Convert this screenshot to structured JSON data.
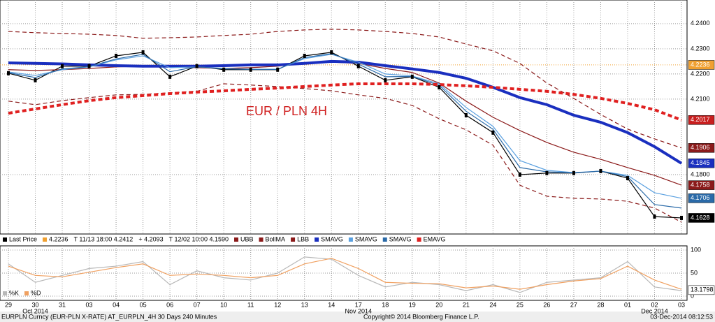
{
  "chart_data": [
    {
      "type": "line",
      "title": "EUR / PLN 4H",
      "categories": [
        "29",
        "30",
        "31",
        "03",
        "04",
        "05",
        "06",
        "07",
        "10",
        "11",
        "12",
        "13",
        "14",
        "17",
        "18",
        "19",
        "20",
        "21",
        "24",
        "25",
        "26",
        "27",
        "28",
        "01",
        "02",
        "03"
      ],
      "months": [
        {
          "index": 1,
          "label": "Oct 2014"
        },
        {
          "index": 13,
          "label": "Nov 2014"
        },
        {
          "index": 24,
          "label": "Dec 2014"
        }
      ],
      "ylim": [
        4.1564,
        4.2494
      ],
      "yticks": [
        {
          "value": 4.24,
          "label": "4.2400"
        },
        {
          "value": 4.23,
          "label": "4.2300"
        },
        {
          "value": 4.22,
          "label": "4.2200"
        },
        {
          "value": 4.21,
          "label": "4.2100"
        },
        {
          "value": 4.18,
          "label": "4.1800"
        }
      ],
      "grid": true,
      "last_price_line": {
        "value": 4.2236,
        "label": "4.2236",
        "color": "#f0a030"
      },
      "legend_notes": [
        "T 11/13 18:00 4.2412",
        "+ 4.2093",
        "T 12/02 10:00 4.1590"
      ],
      "series": [
        {
          "name": "Last Price",
          "color": "#000000",
          "values": [
            4.2203,
            4.2175,
            4.2231,
            4.2231,
            4.2272,
            4.2286,
            4.2189,
            4.2231,
            4.2217,
            4.2217,
            4.2217,
            4.2272,
            4.2286,
            4.2231,
            4.2175,
            4.2189,
            4.2147,
            4.2036,
            4.1967,
            4.18,
            4.1806,
            4.1806,
            4.1814,
            4.1786,
            4.1633,
            4.1628
          ]
        },
        {
          "name": "UBB",
          "color": "#8b1a1a",
          "style": "dashed",
          "values": [
            4.2369,
            4.2364,
            4.2361,
            4.2358,
            4.2353,
            4.2342,
            4.2344,
            4.2347,
            4.2353,
            4.2358,
            4.2369,
            4.2375,
            4.2378,
            4.2375,
            4.2369,
            4.2361,
            4.2347,
            4.2319,
            4.2292,
            4.2242,
            4.2164,
            4.2103,
            4.2039,
            4.1981,
            4.1942,
            4.1906
          ]
        },
        {
          "name": "BollMA",
          "color": "#8b1a1a",
          "values": [
            4.2217,
            4.2214,
            4.2217,
            4.2222,
            4.2228,
            4.2231,
            4.2228,
            4.2225,
            4.2222,
            4.2225,
            4.2231,
            4.2244,
            4.2247,
            4.2242,
            4.2222,
            4.2206,
            4.2164,
            4.2092,
            4.2028,
            4.1975,
            4.1928,
            4.1889,
            4.1861,
            4.1828,
            4.1797,
            4.1758
          ]
        },
        {
          "name": "LBB",
          "color": "#8b1a1a",
          "style": "dashed",
          "values": [
            4.2092,
            4.2078,
            4.2094,
            4.2106,
            4.2117,
            4.2119,
            4.2125,
            4.2131,
            4.2161,
            4.2156,
            4.215,
            4.2142,
            4.2133,
            4.2117,
            4.2103,
            4.2075,
            4.2022,
            4.1978,
            4.1917,
            4.1758,
            4.1714,
            4.1706,
            4.1703,
            4.1694,
            4.1667,
            4.1611
          ]
        },
        {
          "name": "SMAVG",
          "color": "#1a2fbf",
          "width": 4,
          "values": [
            4.2244,
            4.2242,
            4.224,
            4.2236,
            4.2233,
            4.2231,
            4.2231,
            4.2231,
            4.2233,
            4.2236,
            4.2236,
            4.2242,
            4.225,
            4.2247,
            4.2233,
            4.222,
            4.2206,
            4.2183,
            4.2147,
            4.2106,
            4.2078,
            4.2036,
            4.2008,
            4.1967,
            4.1911,
            4.1845
          ]
        },
        {
          "name": "SMAVG",
          "color": "#5aa0e0",
          "values": [
            4.2208,
            4.2194,
            4.2217,
            4.2228,
            4.2256,
            4.2272,
            4.2225,
            4.2228,
            4.2222,
            4.2219,
            4.2219,
            4.2261,
            4.2278,
            4.2247,
            4.22,
            4.2192,
            4.2161,
            4.2067,
            4.1992,
            4.1856,
            4.1817,
            4.1808,
            4.1814,
            4.1797,
            4.1728,
            4.1706
          ]
        },
        {
          "name": "SMAVG",
          "color": "#2a6aa8",
          "values": [
            4.2205,
            4.2186,
            4.222,
            4.2229,
            4.226,
            4.2278,
            4.2209,
            4.2229,
            4.222,
            4.2218,
            4.2218,
            4.2265,
            4.2281,
            4.2239,
            4.2189,
            4.219,
            4.2155,
            4.2052,
            4.198,
            4.1828,
            4.1811,
            4.1807,
            4.1814,
            4.1792,
            4.1681,
            4.1667
          ]
        },
        {
          "name": "EMAVG",
          "color": "#e02020",
          "style": "dashed",
          "width": 4,
          "values": [
            4.2044,
            4.2061,
            4.2078,
            4.2094,
            4.2106,
            4.2114,
            4.2122,
            4.2128,
            4.2133,
            4.2139,
            4.2144,
            4.215,
            4.2156,
            4.2161,
            4.2161,
            4.2161,
            4.2158,
            4.2153,
            4.2147,
            4.2139,
            4.2131,
            4.2119,
            4.2103,
            4.2083,
            4.2058,
            4.2017
          ]
        }
      ],
      "flags": [
        {
          "value": 4.2236,
          "label": "4.2236",
          "color": "#f0a030"
        },
        {
          "value": 4.2017,
          "label": "4.2017",
          "color": "#c81e1e"
        },
        {
          "value": 4.1906,
          "label": "4.1906",
          "color": "#8b1a1a"
        },
        {
          "value": 4.1845,
          "label": "4.1845",
          "color": "#1a2fbf"
        },
        {
          "value": 4.1758,
          "label": "4.1758",
          "color": "#8b1a1a"
        },
        {
          "value": 4.1706,
          "label": "4.1706",
          "color": "#2a6aa8"
        },
        {
          "value": 4.1628,
          "label": "4.1628",
          "color": "#000000"
        }
      ]
    },
    {
      "type": "line",
      "ylim": [
        -9,
        109
      ],
      "yticks": [
        0,
        50,
        100
      ],
      "series": [
        {
          "name": "%K",
          "color": "#b8b8b8",
          "values": [
            70,
            30,
            45,
            60,
            65,
            75,
            25,
            55,
            40,
            35,
            50,
            85,
            80,
            45,
            20,
            30,
            25,
            12,
            25,
            8,
            30,
            35,
            40,
            75,
            20,
            12
          ]
        },
        {
          "name": "%D",
          "color": "#f0a060",
          "values": [
            65,
            45,
            42,
            52,
            62,
            70,
            45,
            48,
            45,
            40,
            45,
            70,
            82,
            60,
            30,
            28,
            27,
            18,
            22,
            15,
            25,
            33,
            38,
            65,
            35,
            15
          ]
        }
      ],
      "flags": [
        {
          "value": 13.1798,
          "label": "13.1798",
          "color": "#ffffff"
        }
      ]
    }
  ],
  "footer": {
    "left": "EURPLN Curncy (EUR-PLN X-RATE) AT_EURPLN_4H 30 Days 240 Minutes",
    "center": "Copyright© 2014 Bloomberg Finance L.P.",
    "right": "03-Dec-2014 08:12:53"
  }
}
